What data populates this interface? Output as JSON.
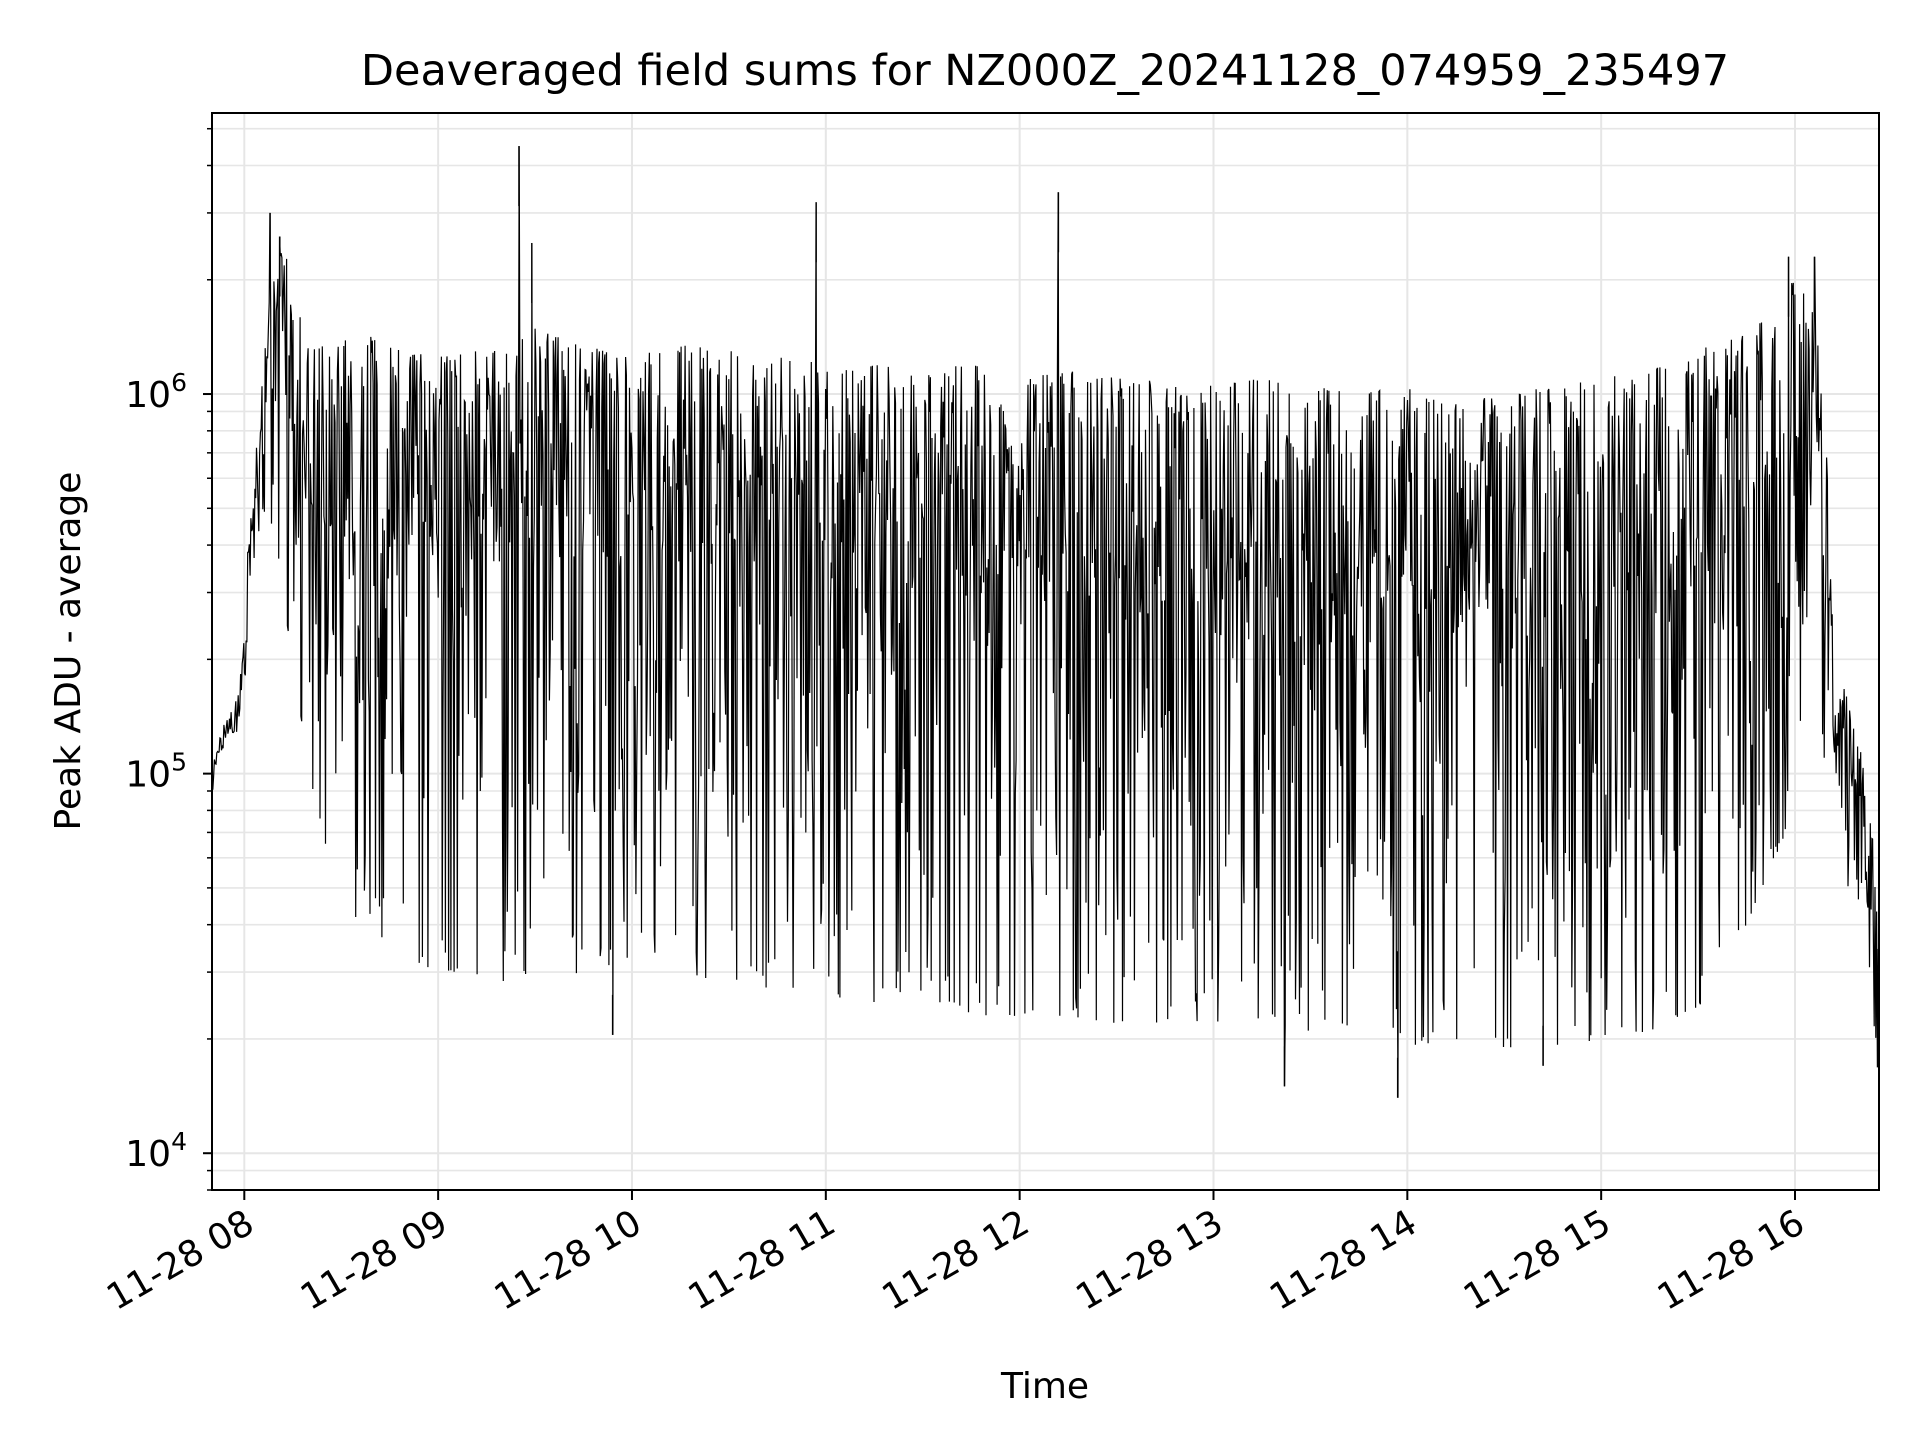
{
  "chart_data": {
    "type": "line",
    "title": "Deaveraged field sums for NZ000Z_20241128_074959_235497",
    "xlabel": "Time",
    "ylabel": "Peak ADU - average",
    "x_range": [
      "2024-11-28 07:50",
      "2024-11-28 16:26"
    ],
    "y_range": [
      8000,
      5500000
    ],
    "y_scale": "log",
    "grid": true,
    "legend": "none",
    "line_color": "#000000",
    "grid_color": "#e6e6e6",
    "x_ticks": [
      {
        "value": "2024-11-28 08:00",
        "label": "11-28 08"
      },
      {
        "value": "2024-11-28 09:00",
        "label": "11-28 09"
      },
      {
        "value": "2024-11-28 10:00",
        "label": "11-28 10"
      },
      {
        "value": "2024-11-28 11:00",
        "label": "11-28 11"
      },
      {
        "value": "2024-11-28 12:00",
        "label": "11-28 12"
      },
      {
        "value": "2024-11-28 13:00",
        "label": "11-28 13"
      },
      {
        "value": "2024-11-28 14:00",
        "label": "11-28 14"
      },
      {
        "value": "2024-11-28 15:00",
        "label": "11-28 15"
      },
      {
        "value": "2024-11-28 16:00",
        "label": "11-28 16"
      }
    ],
    "y_ticks": [
      {
        "value": 10000,
        "base": "10",
        "exp": "4"
      },
      {
        "value": 100000,
        "base": "10",
        "exp": "5"
      },
      {
        "value": 1000000,
        "base": "10",
        "exp": "6"
      }
    ],
    "series": [
      {
        "x": [
          "2024-11-28 07:50",
          "2024-11-28 07:52",
          "2024-11-28 07:55",
          "2024-11-28 07:58",
          "2024-11-28 08:00",
          "2024-11-28 08:02",
          "2024-11-28 08:05",
          "2024-11-28 08:08",
          "2024-11-28 08:12",
          "2024-11-28 08:20",
          "2024-11-28 08:30",
          "2024-11-28 08:40",
          "2024-11-28 08:50",
          "2024-11-28 09:00",
          "2024-11-28 09:10",
          "2024-11-28 09:20",
          "2024-11-28 09:30",
          "2024-11-28 09:45",
          "2024-11-28 10:00",
          "2024-11-28 10:15",
          "2024-11-28 10:30",
          "2024-11-28 10:45",
          "2024-11-28 11:00",
          "2024-11-28 11:15",
          "2024-11-28 11:30",
          "2024-11-28 11:45",
          "2024-11-28 12:00",
          "2024-11-28 12:15",
          "2024-11-28 12:30",
          "2024-11-28 12:45",
          "2024-11-28 13:00",
          "2024-11-28 13:15",
          "2024-11-28 13:30",
          "2024-11-28 13:45",
          "2024-11-28 14:00",
          "2024-11-28 14:15",
          "2024-11-28 14:30",
          "2024-11-28 14:45",
          "2024-11-28 15:00",
          "2024-11-28 15:15",
          "2024-11-28 15:30",
          "2024-11-28 15:45",
          "2024-11-28 16:00",
          "2024-11-28 16:05",
          "2024-11-28 16:09",
          "2024-11-28 16:12",
          "2024-11-28 16:16",
          "2024-11-28 16:20",
          "2024-11-28 16:23",
          "2024-11-28 16:26"
        ],
        "upper": [
          100000,
          130000,
          140000,
          160000,
          250000,
          600000,
          1000000,
          1900000,
          2500000,
          1300000,
          1400000,
          1450000,
          1300000,
          1250000,
          1300000,
          1350000,
          1500000,
          1350000,
          1250000,
          1350000,
          1300000,
          1250000,
          1200000,
          1200000,
          1150000,
          1200000,
          1100000,
          1150000,
          1100000,
          1100000,
          1050000,
          1100000,
          1050000,
          1000000,
          1050000,
          950000,
          1000000,
          1050000,
          1100000,
          1150000,
          1300000,
          1500000,
          2000000,
          1800000,
          1100000,
          200000,
          160000,
          120000,
          80000,
          50000
        ],
        "lower": [
          80000,
          110000,
          120000,
          130000,
          150000,
          350000,
          400000,
          450000,
          300000,
          90000,
          45000,
          38000,
          33000,
          30000,
          30000,
          28000,
          28000,
          30000,
          32000,
          30000,
          28000,
          27000,
          26000,
          25000,
          24000,
          23000,
          23000,
          23000,
          22000,
          22000,
          22000,
          21000,
          21000,
          20000,
          19000,
          20000,
          19000,
          19000,
          20000,
          21000,
          24000,
          40000,
          80000,
          400000,
          110000,
          90000,
          50000,
          40000,
          30000,
          15000
        ],
        "spikes": [
          {
            "x": "2024-11-28 08:08",
            "y": 3000000
          },
          {
            "x": "2024-11-28 08:11",
            "y": 2600000
          },
          {
            "x": "2024-11-28 09:25",
            "y": 4500000
          },
          {
            "x": "2024-11-28 09:29",
            "y": 2500000
          },
          {
            "x": "2024-11-28 10:57",
            "y": 3200000
          },
          {
            "x": "2024-11-28 12:12",
            "y": 3400000
          },
          {
            "x": "2024-11-28 15:58",
            "y": 2300000
          },
          {
            "x": "2024-11-28 16:06",
            "y": 2300000
          }
        ],
        "dips": [
          {
            "x": "2024-11-28 13:22",
            "y": 15000
          },
          {
            "x": "2024-11-28 13:57",
            "y": 14000
          },
          {
            "x": "2024-11-28 14:42",
            "y": 17000
          },
          {
            "x": "2024-11-28 09:54",
            "y": 20500
          },
          {
            "x": "2024-11-28 16:26",
            "y": 13000
          }
        ]
      }
    ]
  }
}
